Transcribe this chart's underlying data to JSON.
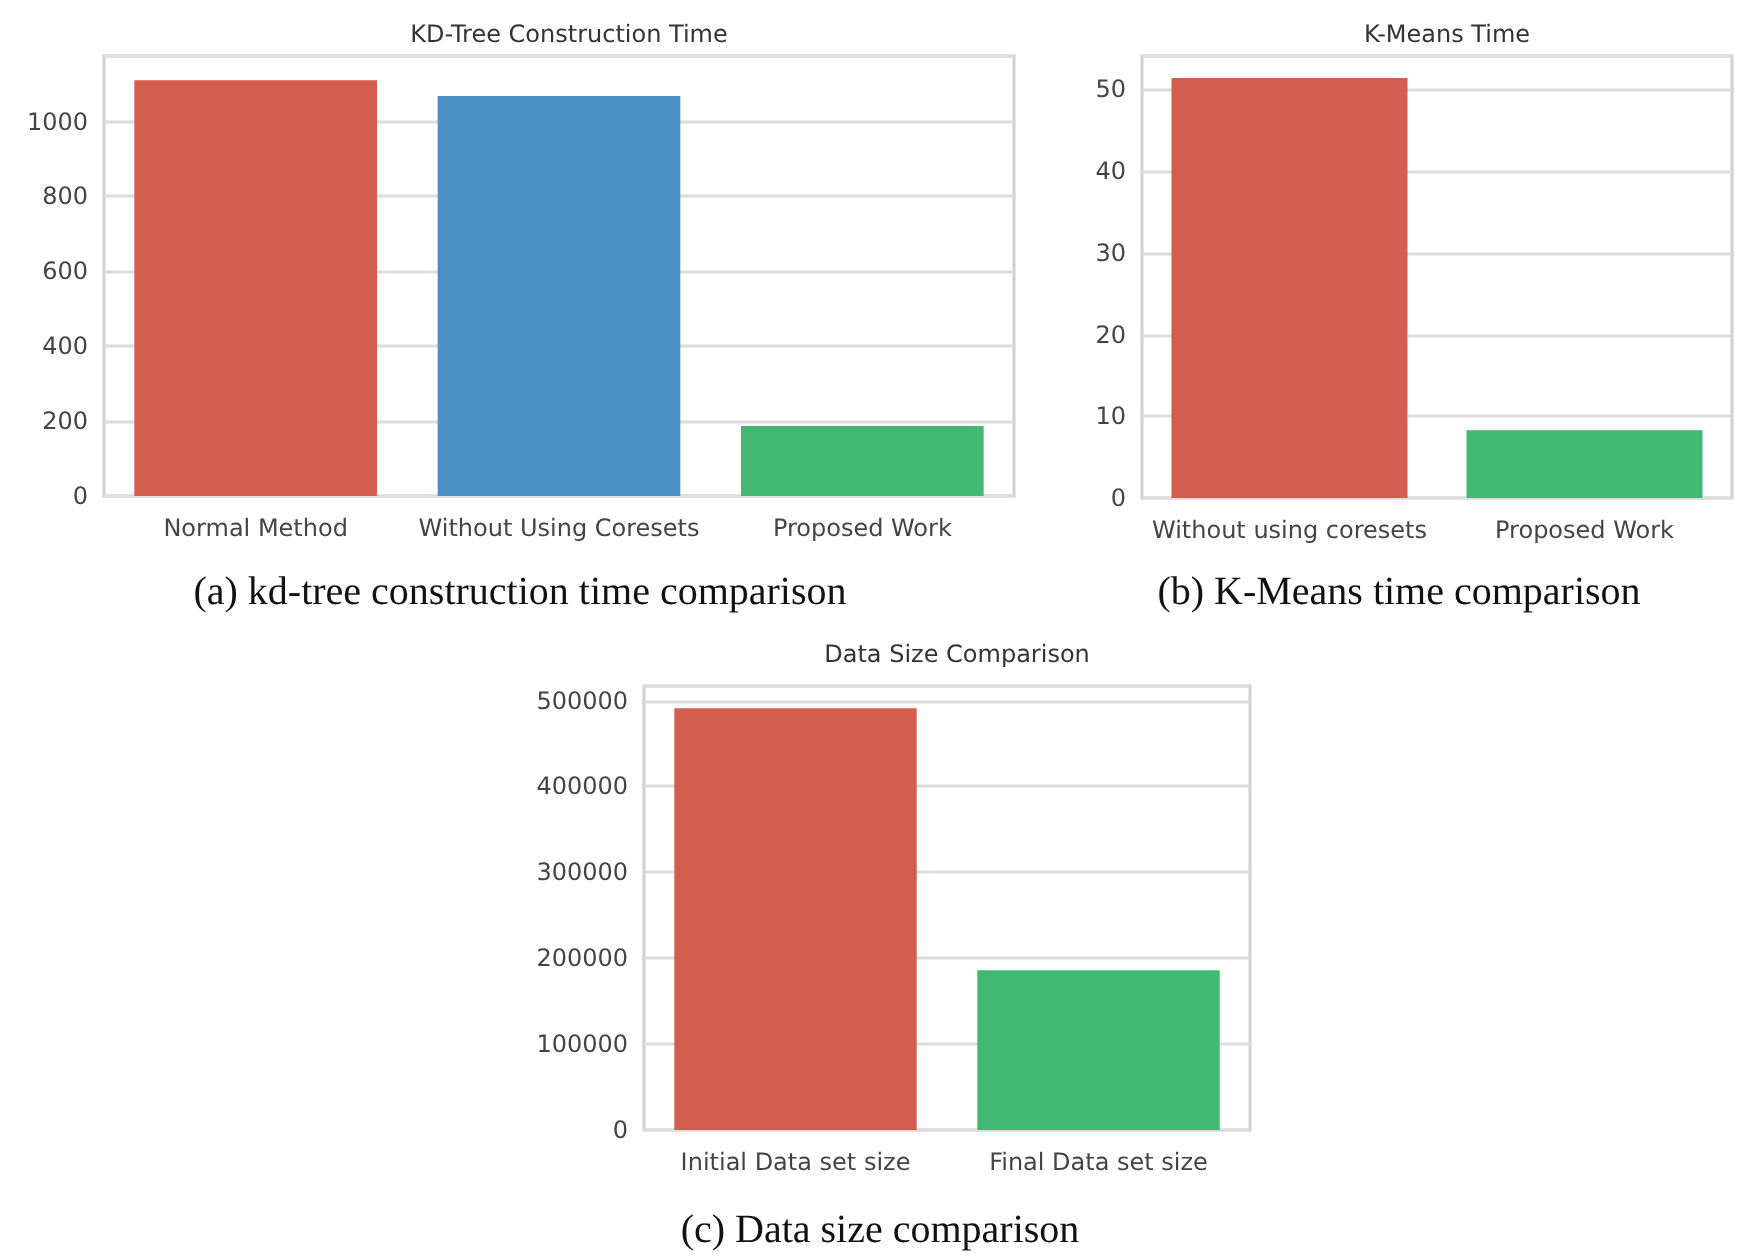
{
  "chart_data": [
    {
      "type": "bar",
      "title": "KD-Tree Construction Time",
      "categories": [
        "Normal Method",
        "Without Using Coresets",
        "Proposed Work"
      ],
      "values": [
        1110,
        1068,
        187
      ],
      "colors": [
        "#d35d4f",
        "#4a90c4",
        "#42b873"
      ],
      "ylim": [
        0,
        1175
      ],
      "yticks": [
        0,
        200,
        400,
        600,
        800,
        1000
      ],
      "grid": "y",
      "annotations": [
        "(a) kd-tree construction time comparison"
      ]
    },
    {
      "type": "bar",
      "title": "K-Means Time",
      "categories": [
        "Without using coresets",
        "Proposed Work"
      ],
      "values": [
        51.4,
        8.3
      ],
      "colors": [
        "#d35d4f",
        "#42b873"
      ],
      "ylim": [
        0,
        54.1
      ],
      "yticks": [
        0,
        10,
        20,
        30,
        40,
        50
      ],
      "grid": "y",
      "annotations": [
        "(b) K-Means time comparison"
      ]
    },
    {
      "type": "bar",
      "title": "Data Size Comparison",
      "categories": [
        "Initial Data set size",
        "Final Data set size"
      ],
      "values": [
        491000,
        186000
      ],
      "colors": [
        "#d35d4f",
        "#42b873"
      ],
      "ylim": [
        0,
        517000
      ],
      "yticks": [
        0,
        100000,
        200000,
        300000,
        400000,
        500000
      ],
      "grid": "y",
      "annotations": [
        "(c) Data size comparison"
      ]
    }
  ]
}
